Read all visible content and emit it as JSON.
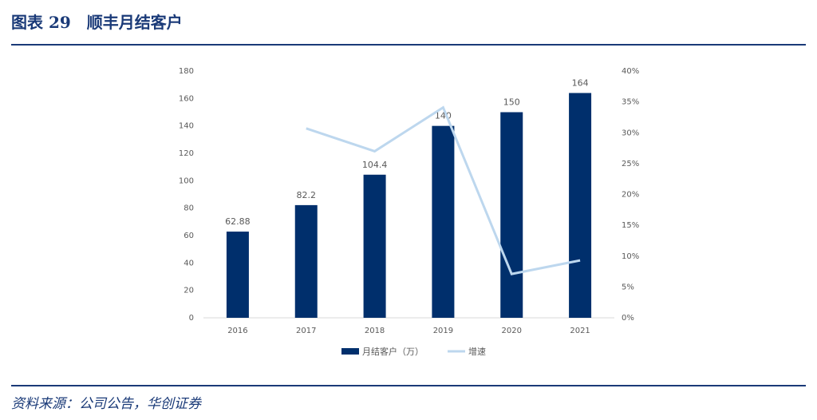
{
  "header": {
    "title": "图表 29　顺丰月结客户"
  },
  "footer": {
    "source": "资料来源：公司公告，华创证券"
  },
  "chart_data": {
    "type": "bar",
    "categories": [
      "2016",
      "2017",
      "2018",
      "2019",
      "2020",
      "2021"
    ],
    "series": [
      {
        "name": "月结客户（万）",
        "type": "bar",
        "color": "#002f6c",
        "values": [
          62.88,
          82.2,
          104.4,
          140,
          150,
          164
        ],
        "data_labels": true
      },
      {
        "name": "增速",
        "type": "line",
        "axis": "y2",
        "color": "#bdd7ee",
        "values": [
          null,
          30.7,
          27.0,
          34.1,
          7.1,
          9.3
        ]
      }
    ],
    "ylim": [
      0,
      180
    ],
    "yticks": [
      0,
      20,
      40,
      60,
      80,
      100,
      120,
      140,
      160,
      180
    ],
    "y2lim": [
      0,
      40
    ],
    "y2ticks": [
      {
        "value": 0,
        "label": "0%"
      },
      {
        "value": 5,
        "label": "5%"
      },
      {
        "value": 10,
        "label": "10%"
      },
      {
        "value": 15,
        "label": "15%"
      },
      {
        "value": 20,
        "label": "20%"
      },
      {
        "value": 25,
        "label": "25%"
      },
      {
        "value": 30,
        "label": "30%"
      },
      {
        "value": 35,
        "label": "35%"
      },
      {
        "value": 40,
        "label": "40%"
      }
    ],
    "grid": false,
    "legend": "bottom"
  }
}
